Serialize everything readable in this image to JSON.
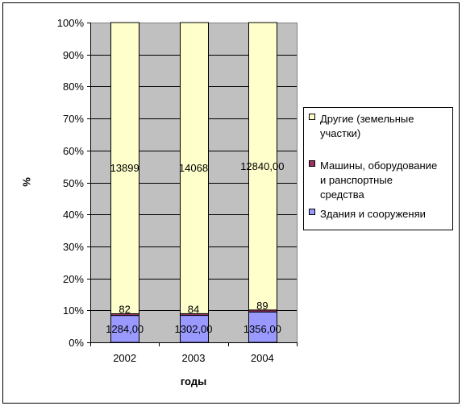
{
  "chart_data": {
    "type": "bar",
    "stacked": true,
    "normalized": true,
    "categories": [
      "2002",
      "2003",
      "2004"
    ],
    "series": [
      {
        "name": "Здания и сооруженяи",
        "values": [
          1284,
          1302,
          1356
        ],
        "value_labels": [
          "1284,00",
          "1302,00",
          "1356,00"
        ],
        "color": "#9999ff"
      },
      {
        "name": "Машины, оборудование и ранспортные средства",
        "values": [
          82,
          84,
          89
        ],
        "value_labels": [
          "82",
          "84",
          "89"
        ],
        "color": "#993366"
      },
      {
        "name": "Другие (земельные участки)",
        "values": [
          13899,
          14068,
          12840
        ],
        "value_labels": [
          "13899",
          "14068",
          "12840,00"
        ],
        "color": "#ffffcc"
      }
    ],
    "xlabel": "годы",
    "ylabel": "%",
    "yticks": [
      "0%",
      "10%",
      "20%",
      "30%",
      "40%",
      "50%",
      "60%",
      "70%",
      "80%",
      "90%",
      "100%"
    ],
    "ylim": [
      0,
      100
    ],
    "grid": true,
    "plot_background": "#c0c0c0",
    "legend_position": "right"
  }
}
